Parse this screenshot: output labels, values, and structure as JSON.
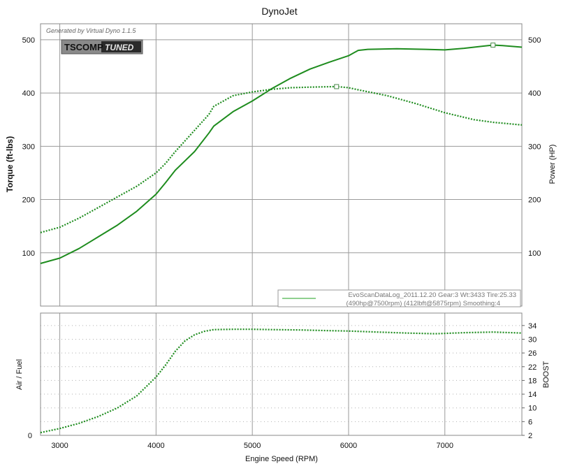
{
  "chart_data": [
    {
      "type": "line",
      "title": "DynoJet",
      "watermark": "Generated by Virtual Dyno 1.1.5",
      "logo": "TSCOMP TUNED",
      "xlabel": "",
      "ylabel_left": "Torque (ft-lbs)",
      "ylabel_right": "Power (HP)",
      "xlim": [
        2800,
        7800
      ],
      "ylim_left": [
        0,
        530
      ],
      "ylim_right": [
        0,
        530
      ],
      "yticks_left": [
        "100",
        "200",
        "300",
        "400",
        "500"
      ],
      "yticks_right": [
        "100",
        "200",
        "300",
        "400",
        "500"
      ],
      "legend": {
        "line1": "EvoScanDataLog_2011.12.20 Gear:3 Wt:3433 Tire:25.33",
        "line2": "(490hp@7500rpm) (412lbft@5875rpm) Smoothing:4",
        "placement": "bottom-right"
      },
      "series": [
        {
          "axis": "right",
          "style": "solid",
          "color": "#1e8c1e",
          "x": [
            2800,
            3000,
            3200,
            3400,
            3600,
            3800,
            4000,
            4100,
            4200,
            4400,
            4550,
            4600,
            4800,
            5000,
            5200,
            5400,
            5600,
            5800,
            6000,
            6100,
            6200,
            6500,
            6800,
            7000,
            7200,
            7400,
            7500,
            7600,
            7800
          ],
          "y": [
            80,
            90,
            108,
            130,
            152,
            178,
            210,
            232,
            255,
            290,
            325,
            338,
            365,
            385,
            408,
            428,
            445,
            458,
            470,
            480,
            482,
            483,
            482,
            481,
            484,
            488,
            490,
            489,
            486
          ]
        },
        {
          "axis": "left",
          "style": "dotted",
          "color": "#1e8c1e",
          "x": [
            2800,
            3000,
            3200,
            3400,
            3600,
            3800,
            4000,
            4100,
            4200,
            4400,
            4550,
            4600,
            4800,
            5000,
            5200,
            5400,
            5600,
            5875,
            6000,
            6100,
            6400,
            6700,
            7000,
            7300,
            7500,
            7800
          ],
          "y": [
            138,
            148,
            165,
            185,
            205,
            225,
            250,
            268,
            290,
            330,
            360,
            375,
            395,
            402,
            407,
            410,
            411,
            412,
            410,
            406,
            395,
            380,
            363,
            350,
            345,
            340
          ]
        }
      ],
      "markers": [
        {
          "x": 5875,
          "y": 412,
          "axis": "left"
        },
        {
          "x": 7500,
          "y": 490,
          "axis": "right"
        }
      ]
    },
    {
      "type": "line",
      "xlabel": "Engine Speed (RPM)",
      "ylabel_left": "Air / Fuel",
      "ylabel_right": "BOOST",
      "xlim": [
        2800,
        7800
      ],
      "xticks": [
        "3000",
        "4000",
        "5000",
        "6000",
        "7000"
      ],
      "xtick_values": [
        3000,
        4000,
        5000,
        6000,
        7000
      ],
      "yticks_left": [
        "0"
      ],
      "yticks_right": [
        "2",
        "6",
        "10",
        "14",
        "18",
        "22",
        "26",
        "30",
        "34"
      ],
      "ylim_right": [
        2,
        36
      ],
      "series": [
        {
          "axis": "right",
          "style": "dotted",
          "color": "#1e8c1e",
          "x": [
            2800,
            3000,
            3200,
            3400,
            3600,
            3800,
            4000,
            4100,
            4200,
            4300,
            4400,
            4500,
            4600,
            4800,
            5000,
            5200,
            5500,
            5800,
            6000,
            6300,
            6600,
            6900,
            7200,
            7500,
            7800
          ],
          "y": [
            2.8,
            4.0,
            5.5,
            7.5,
            10.0,
            13.5,
            19.0,
            22.5,
            26.5,
            29.5,
            31.3,
            32.3,
            32.8,
            32.9,
            32.9,
            32.8,
            32.7,
            32.5,
            32.4,
            32.1,
            31.8,
            31.6,
            31.9,
            32.1,
            31.8
          ]
        }
      ]
    }
  ]
}
